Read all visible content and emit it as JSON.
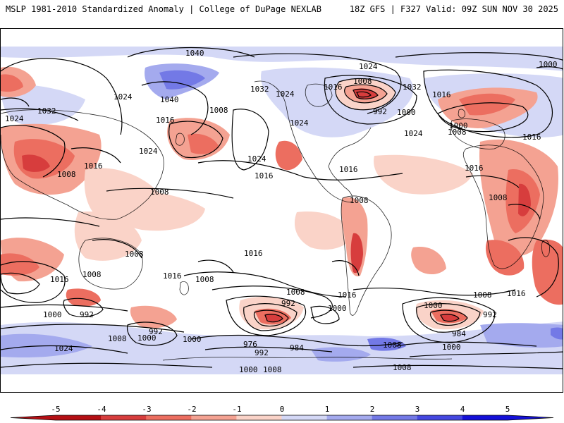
{
  "header": {
    "left_title": "MSLP 1981-2010 Standardized Anomaly | College of DuPage NEXLAB",
    "right_title": "18Z GFS | F327 Valid: 09Z SUN NOV 30 2025"
  },
  "colorbar": {
    "ticks": [
      "-5",
      "-4",
      "-3",
      "-2",
      "-1",
      "0",
      "1",
      "2",
      "3",
      "4",
      "5"
    ],
    "colors": [
      "#b40f14",
      "#d73d3d",
      "#ec6e60",
      "#f4a292",
      "#fad3c8",
      "#ffffff",
      "#d4d8f6",
      "#a4aaee",
      "#7379e6",
      "#4447e0",
      "#1410d8"
    ]
  },
  "isobars": {
    "labels": [
      "1040",
      "1024",
      "1008",
      "1032",
      "1024",
      "1016",
      "1000",
      "1024",
      "1032",
      "1024",
      "1016",
      "1008",
      "1000",
      "992",
      "1000",
      "1016",
      "1008",
      "1016",
      "1024",
      "1016",
      "1008",
      "1008",
      "1016",
      "1008",
      "1016",
      "1000",
      "992",
      "1008",
      "1016",
      "1008",
      "1000",
      "992",
      "1016",
      "1008",
      "1000",
      "1024",
      "1008",
      "1016",
      "1000",
      "992",
      "984",
      "1008",
      "1016",
      "1000",
      "1008",
      "992",
      "976",
      "984",
      "1000",
      "1008",
      "1008",
      "1016",
      "992",
      "1040",
      "1032",
      "1024",
      "1024",
      "1016",
      "1024",
      "1000",
      "1008",
      "1008"
    ]
  }
}
